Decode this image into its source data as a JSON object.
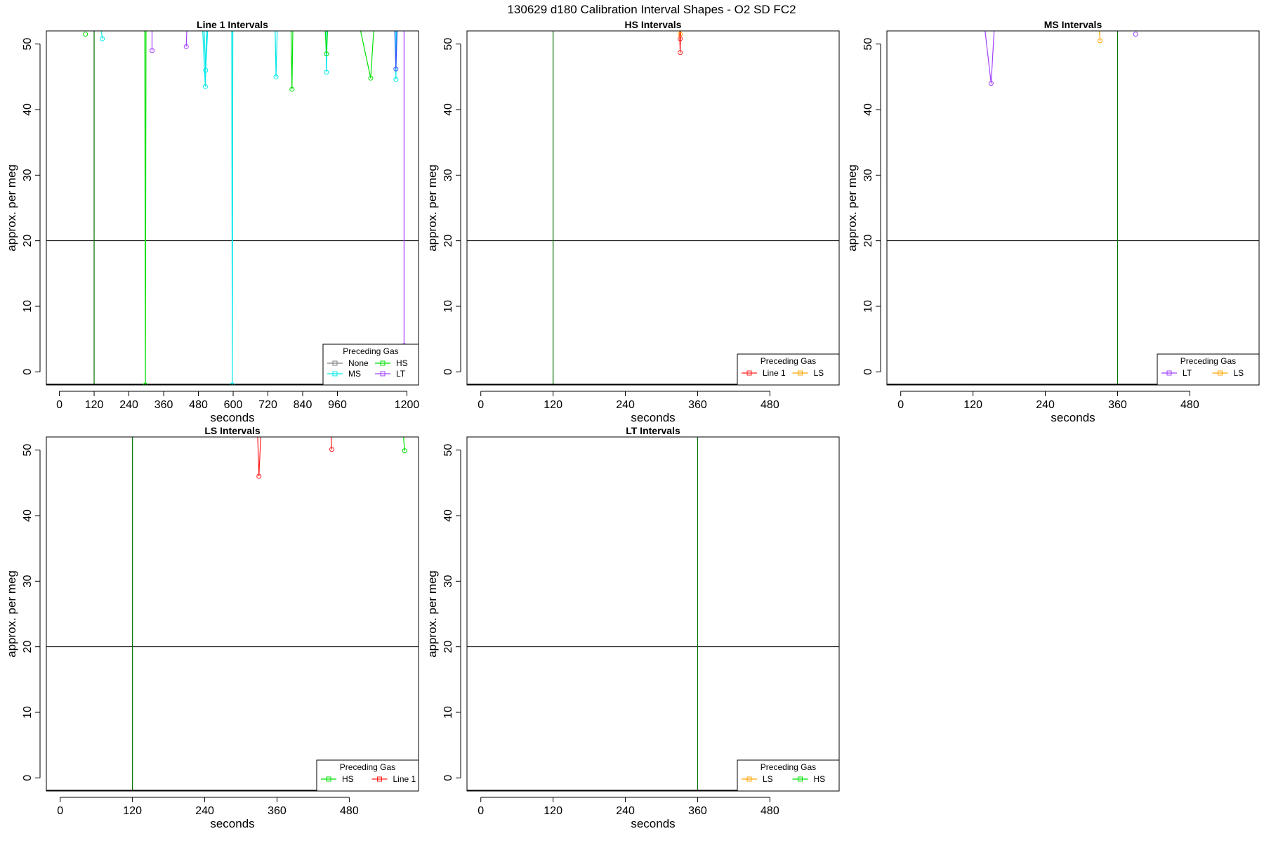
{
  "figure": {
    "title": "130629   d180   Calibration Interval Shapes - O2 SD FC2"
  },
  "series_colors": {
    "None": "#808080",
    "HS": "#00e000",
    "MS": "#00e8e8",
    "LT": "#a040ff",
    "LS": "#ffa500",
    "Line 1": "#ff2020",
    "blue": "#3050ff"
  },
  "chart_data": [
    {
      "type": "line",
      "title": "Line 1 Intervals",
      "xlabel": "seconds",
      "ylabel": "approx. per meg",
      "xlim": [
        -45,
        1240
      ],
      "ylim": [
        -2,
        52
      ],
      "xticks": [
        0,
        120,
        240,
        360,
        480,
        600,
        720,
        840,
        960,
        1200
      ],
      "yticks": [
        0,
        10,
        20,
        30,
        40,
        50
      ],
      "vlines": [
        {
          "x": 120,
          "color": "#007000"
        }
      ],
      "hlines": [
        {
          "y": 20,
          "color": "#000000"
        }
      ],
      "legend": {
        "title": "Preceding Gas",
        "position": "bottom-right",
        "columns": 2,
        "entries": [
          "None",
          "HS",
          "MS",
          "LT"
        ]
      },
      "series": [
        {
          "gas": "HS",
          "points": [
            [
              90,
              51.5
            ]
          ]
        },
        {
          "gas": "HS",
          "points": [
            [
              295,
              52
            ],
            [
              297,
              -2
            ],
            [
              299,
              52
            ]
          ]
        },
        {
          "gas": "MS",
          "points": [
            [
              145,
              52
            ],
            [
              148,
              50.8
            ]
          ]
        },
        {
          "gas": "LT",
          "points": [
            [
              320,
              52
            ],
            [
              320,
              49
            ]
          ]
        },
        {
          "gas": "LT",
          "points": [
            [
              440,
              52
            ],
            [
              438,
              49.6
            ]
          ]
        },
        {
          "gas": "MS",
          "points": [
            [
              495,
              52
            ],
            [
              504,
              43.5
            ],
            [
              508,
              52
            ]
          ]
        },
        {
          "gas": "MS",
          "points": [
            [
              512,
              52
            ],
            [
              505,
              46
            ],
            [
              500,
              52
            ]
          ]
        },
        {
          "gas": "MS",
          "points": [
            [
              595,
              52
            ],
            [
              597,
              -2
            ],
            [
              599,
              52
            ]
          ]
        },
        {
          "gas": "MS",
          "points": [
            [
              745,
              52
            ],
            [
              748,
              45
            ],
            [
              752,
              52
            ]
          ]
        },
        {
          "gas": "HS",
          "points": [
            [
              800,
              52
            ],
            [
              803,
              43.1
            ],
            [
              806,
              52
            ]
          ]
        },
        {
          "gas": "MS",
          "points": [
            [
              920,
              52
            ],
            [
              922,
              45.7
            ],
            [
              925,
              52
            ]
          ]
        },
        {
          "gas": "HS",
          "points": [
            [
              918,
              52
            ],
            [
              922,
              48.5
            ],
            [
              926,
              52
            ]
          ]
        },
        {
          "gas": "HS",
          "points": [
            [
              1040,
              52
            ],
            [
              1075,
              44.8
            ],
            [
              1085,
              52
            ]
          ]
        },
        {
          "gas": "MS",
          "points": [
            [
              1160,
              52
            ],
            [
              1162,
              44.6
            ],
            [
              1164,
              52
            ]
          ]
        },
        {
          "gas": "blue",
          "points": [
            [
              1158,
              52
            ],
            [
              1162,
              46.2
            ],
            [
              1166,
              52
            ]
          ]
        },
        {
          "gas": "LT",
          "points": [
            [
              1190,
              52
            ],
            [
              1190,
              4
            ]
          ]
        }
      ]
    },
    {
      "type": "line",
      "title": "HS Intervals",
      "xlabel": "seconds",
      "ylabel": "approx. per meg",
      "xlim": [
        -23,
        595
      ],
      "ylim": [
        -2,
        52
      ],
      "xticks": [
        0,
        120,
        240,
        360,
        480
      ],
      "yticks": [
        0,
        10,
        20,
        30,
        40,
        50
      ],
      "vlines": [
        {
          "x": 120,
          "color": "#007000"
        }
      ],
      "hlines": [
        {
          "y": 20,
          "color": "#000000"
        }
      ],
      "legend": {
        "title": "Preceding Gas",
        "position": "bottom-right",
        "columns": 2,
        "entries": [
          "Line 1",
          "LS"
        ]
      },
      "series": [
        {
          "gas": "Line 1",
          "points": [
            [
              330,
              52
            ],
            [
              331,
              48.7
            ],
            [
              332,
              52
            ]
          ]
        },
        {
          "gas": "Line 1",
          "points": [
            [
              330,
              52
            ],
            [
              331,
              50.8
            ],
            [
              332,
              52
            ]
          ]
        },
        {
          "gas": "LS",
          "points": [
            [
              330,
              52
            ],
            [
              331,
              51.5
            ]
          ]
        }
      ]
    },
    {
      "type": "line",
      "title": "MS Intervals",
      "xlabel": "seconds",
      "ylabel": "approx. per meg",
      "xlim": [
        -23,
        595
      ],
      "ylim": [
        -2,
        52
      ],
      "xticks": [
        0,
        120,
        240,
        360,
        480
      ],
      "yticks": [
        0,
        10,
        20,
        30,
        40,
        50
      ],
      "vlines": [
        {
          "x": 360,
          "color": "#007000"
        }
      ],
      "hlines": [
        {
          "y": 20,
          "color": "#000000"
        }
      ],
      "legend": {
        "title": "Preceding Gas",
        "position": "bottom-right",
        "columns": 2,
        "entries": [
          "LT",
          "LS"
        ]
      },
      "series": [
        {
          "gas": "LT",
          "points": [
            [
              140,
              52
            ],
            [
              150,
              44
            ],
            [
              155,
              52
            ]
          ]
        },
        {
          "gas": "LS",
          "points": [
            [
              330,
              52
            ],
            [
              331,
              50.5
            ]
          ]
        },
        {
          "gas": "LT",
          "points": [
            [
              390,
              51.5
            ]
          ]
        }
      ]
    },
    {
      "type": "line",
      "title": "LS Intervals",
      "xlabel": "seconds",
      "ylabel": "approx. per meg",
      "xlim": [
        -23,
        595
      ],
      "ylim": [
        -2,
        52
      ],
      "xticks": [
        0,
        120,
        240,
        360,
        480
      ],
      "yticks": [
        0,
        10,
        20,
        30,
        40,
        50
      ],
      "vlines": [
        {
          "x": 120,
          "color": "#007000"
        }
      ],
      "hlines": [
        {
          "y": 20,
          "color": "#000000"
        }
      ],
      "legend": {
        "title": "Preceding Gas",
        "position": "bottom-right",
        "columns": 2,
        "entries": [
          "HS",
          "Line 1"
        ]
      },
      "series": [
        {
          "gas": "Line 1",
          "points": [
            [
              328,
              52
            ],
            [
              330,
              46
            ],
            [
              333,
              52
            ]
          ]
        },
        {
          "gas": "Line 1",
          "points": [
            [
              450,
              52
            ],
            [
              451,
              50.1
            ]
          ]
        },
        {
          "gas": "HS",
          "points": [
            [
              570,
              52
            ],
            [
              572,
              49.9
            ]
          ]
        }
      ]
    },
    {
      "type": "line",
      "title": "LT Intervals",
      "xlabel": "seconds",
      "ylabel": "approx. per meg",
      "xlim": [
        -23,
        595
      ],
      "ylim": [
        -2,
        52
      ],
      "xticks": [
        0,
        120,
        240,
        360,
        480
      ],
      "yticks": [
        0,
        10,
        20,
        30,
        40,
        50
      ],
      "vlines": [
        {
          "x": 360,
          "color": "#007000"
        }
      ],
      "hlines": [
        {
          "y": 20,
          "color": "#000000"
        }
      ],
      "legend": {
        "title": "Preceding Gas",
        "position": "bottom-right",
        "columns": 2,
        "entries": [
          "LS",
          "HS"
        ]
      },
      "series": []
    }
  ]
}
